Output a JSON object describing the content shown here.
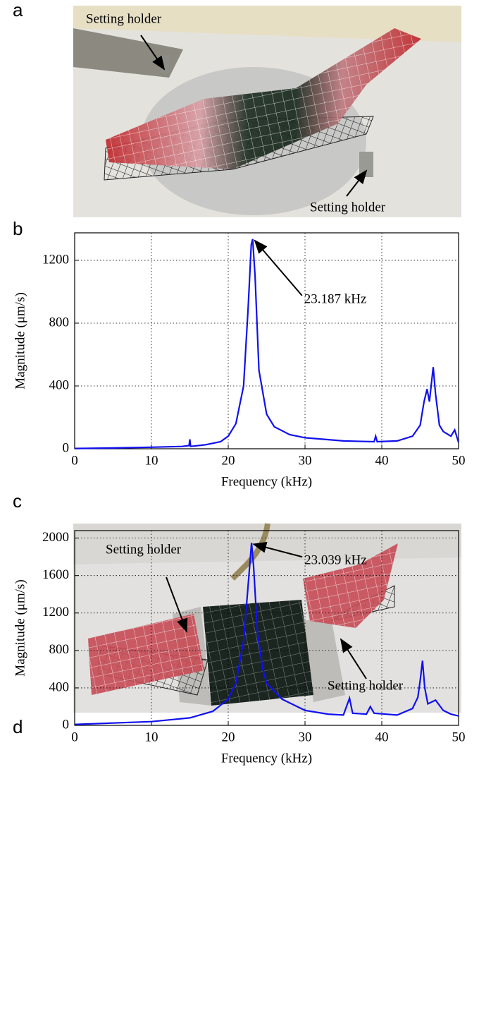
{
  "panel_labels": [
    "a",
    "b",
    "c",
    "d"
  ],
  "photos": [
    {
      "labels": [
        "Setting holder",
        "Setting holder"
      ]
    },
    {
      "labels": [
        "Setting holder",
        "Setting holder"
      ]
    }
  ],
  "chart_data": [
    {
      "type": "line",
      "xlabel": "Frequency (kHz)",
      "ylabel": "Magnitude (μm/s)",
      "color": "#1010f0",
      "xlim": [
        0,
        50
      ],
      "xticks": [
        0,
        10,
        20,
        30,
        40,
        50
      ],
      "ylim": [
        0,
        1375
      ],
      "yticks": [
        0,
        400,
        800,
        1200
      ],
      "grid": true,
      "x": [
        0,
        5,
        10,
        14,
        14.9,
        15,
        15.1,
        17,
        19,
        20,
        21,
        22,
        22.6,
        23.0,
        23.187,
        23.5,
        24,
        25,
        26,
        28,
        30,
        35,
        39,
        39.2,
        39.4,
        42,
        44,
        45,
        45.5,
        45.9,
        46.2,
        46.7,
        47,
        47.5,
        48,
        49,
        49.5,
        50
      ],
      "values": [
        2,
        5,
        10,
        15,
        20,
        60,
        15,
        25,
        45,
        80,
        160,
        400,
        900,
        1300,
        1335,
        1100,
        500,
        220,
        140,
        90,
        70,
        50,
        45,
        80,
        45,
        50,
        80,
        150,
        300,
        380,
        300,
        520,
        350,
        150,
        110,
        80,
        120,
        40
      ],
      "annotations": [
        {
          "text": "23.187 kHz",
          "x": 23.187,
          "y": 1335
        }
      ]
    },
    {
      "type": "line",
      "xlabel": "Frequency (kHz)",
      "ylabel": "Magnitude (μm/s)",
      "color": "#1010f0",
      "xlim": [
        0,
        50
      ],
      "xticks": [
        0,
        10,
        20,
        30,
        40,
        50
      ],
      "ylim": [
        0,
        2080
      ],
      "yticks": [
        0,
        400,
        800,
        1200,
        1600,
        2000
      ],
      "grid": true,
      "x": [
        0,
        5,
        10,
        15,
        18,
        20,
        21,
        22,
        22.6,
        23.039,
        23.3,
        23.8,
        24.5,
        25,
        27,
        29,
        30,
        33,
        35,
        35.8,
        36.2,
        38,
        38.5,
        39,
        42,
        44,
        44.7,
        45,
        45.3,
        45.6,
        46,
        47,
        48,
        49,
        50
      ],
      "values": [
        10,
        25,
        40,
        80,
        150,
        280,
        450,
        900,
        1500,
        1950,
        1700,
        1000,
        600,
        450,
        280,
        200,
        160,
        120,
        110,
        290,
        130,
        120,
        200,
        130,
        110,
        180,
        300,
        480,
        690,
        400,
        230,
        270,
        160,
        120,
        100
      ],
      "annotations": [
        {
          "text": "23.039 kHz",
          "x": 23.039,
          "y": 1950
        }
      ]
    }
  ]
}
